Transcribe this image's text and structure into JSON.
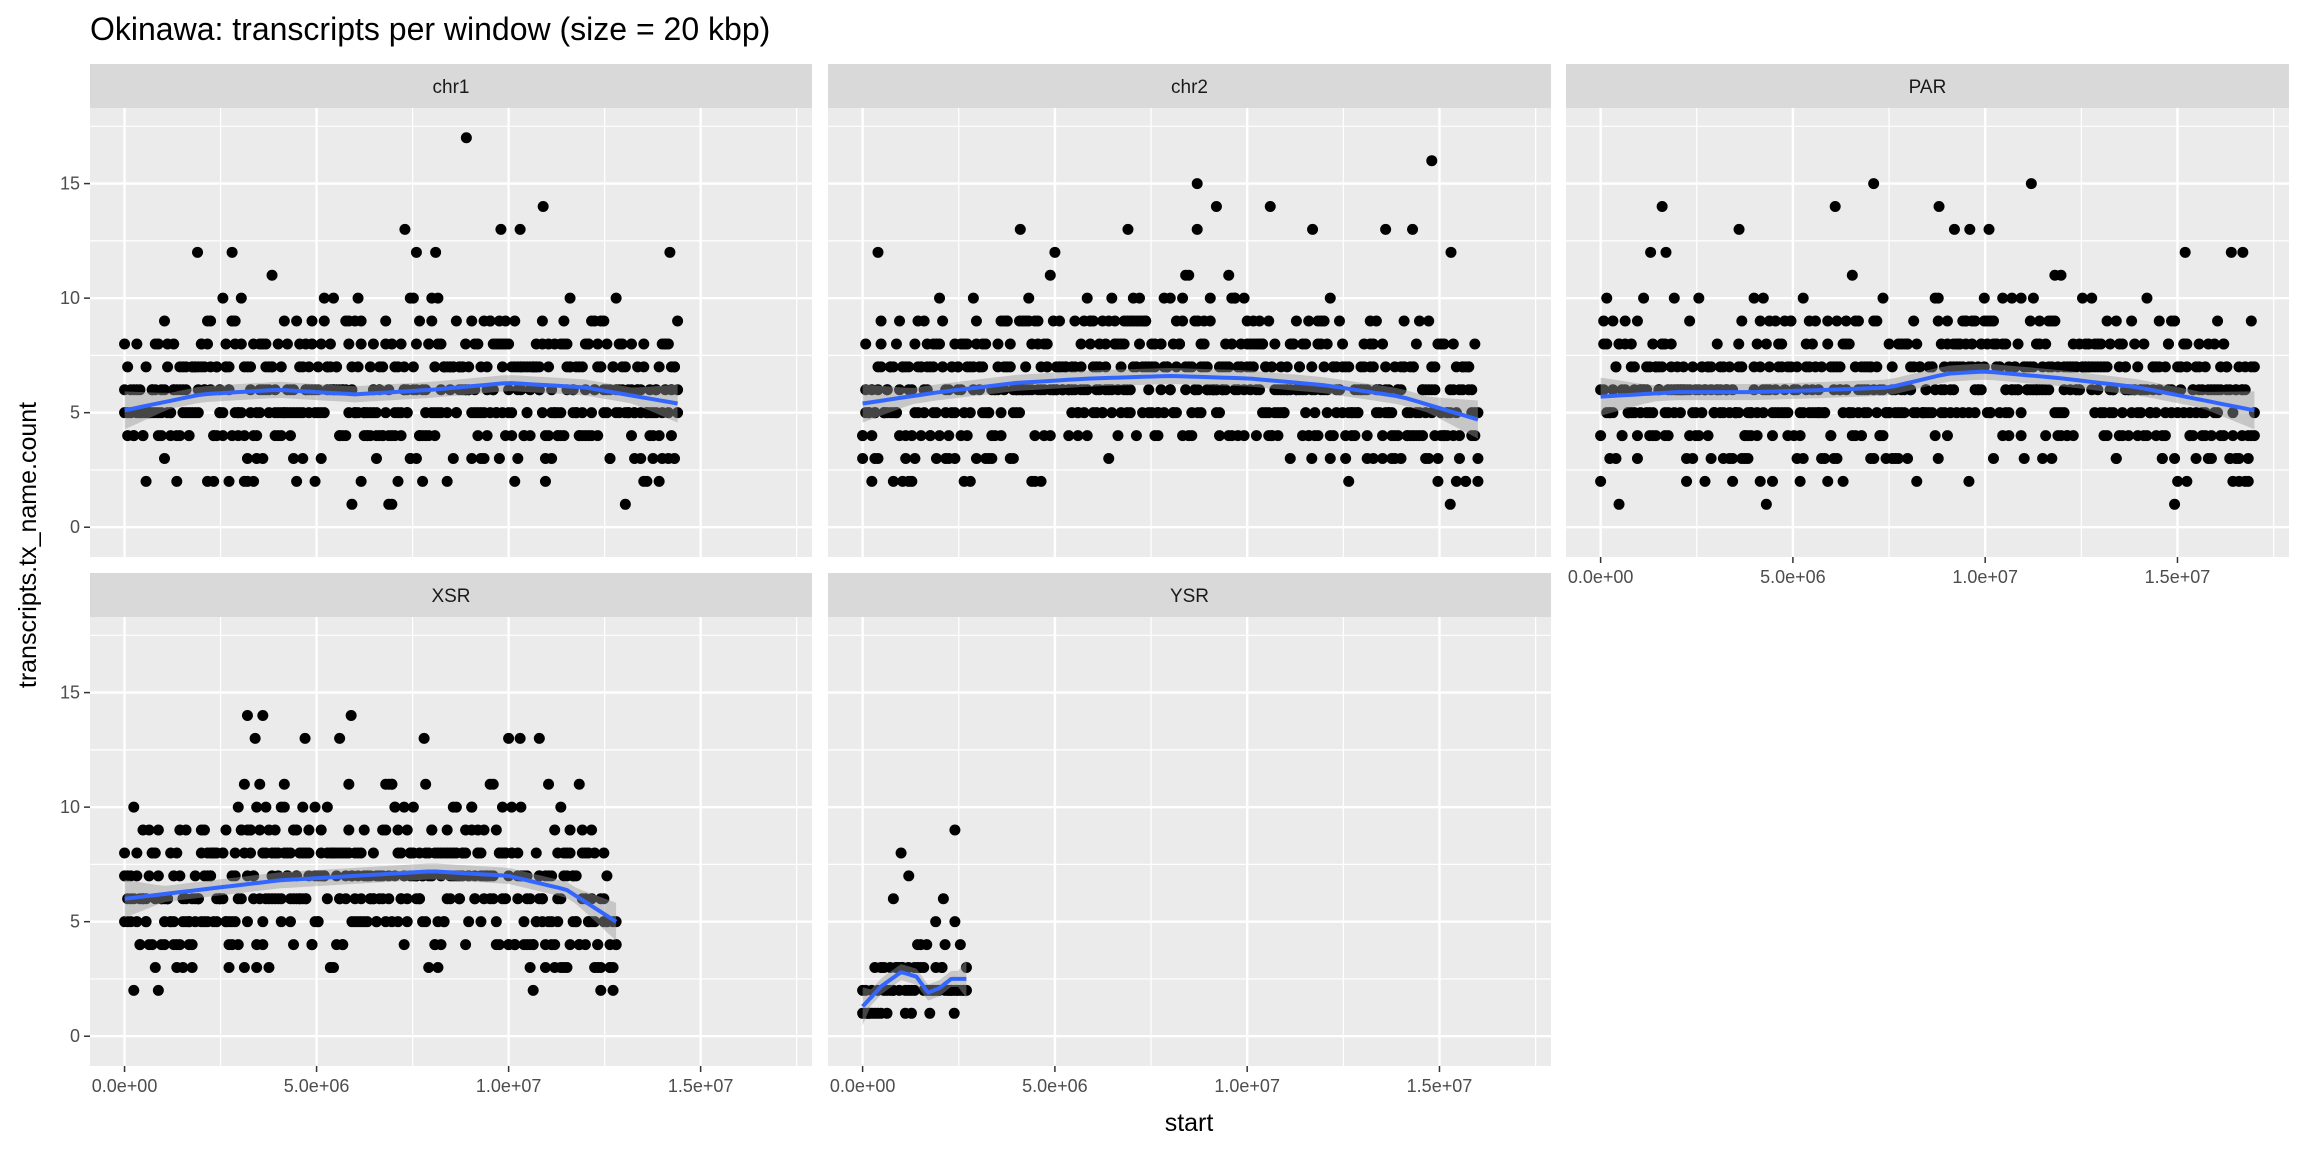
{
  "chart_data": {
    "type": "scatter",
    "title": "Okinawa: transcripts per window (size = 20 kbp)",
    "xlabel": "start",
    "ylabel": "transcripts.tx_name.count",
    "xlim": [
      -900000,
      17900000
    ],
    "ylim": [
      -1.3,
      18.3
    ],
    "x_ticks": [
      0,
      5000000,
      10000000,
      15000000
    ],
    "x_tick_labels": [
      "0.0e+00",
      "5.0e+06",
      "1.0e+07",
      "1.5e+07"
    ],
    "y_ticks": [
      0,
      5,
      10,
      15
    ],
    "y_tick_labels": [
      "0",
      "5",
      "10",
      "15"
    ],
    "grid": true,
    "smoother": "loess with gray confidence band",
    "colors": {
      "panel_bg": "#ebebeb",
      "grid": "#ffffff",
      "strip_bg": "#d9d9d9",
      "points": "#000000",
      "smooth_line": "#3366ff",
      "ribbon": "#999999"
    },
    "panels": [
      {
        "name": "chr1",
        "x_range": [
          0,
          14400000
        ],
        "y_level_range": [
          1,
          12
        ],
        "outliers": [
          {
            "x": 8900000,
            "y": 17
          },
          {
            "x": 10900000,
            "y": 14
          },
          {
            "x": 7300000,
            "y": 13
          },
          {
            "x": 9800000,
            "y": 13
          },
          {
            "x": 10300000,
            "y": 13
          },
          {
            "x": 1900000,
            "y": 12
          },
          {
            "x": 2800000,
            "y": 12
          },
          {
            "x": 7600000,
            "y": 12
          },
          {
            "x": 8100000,
            "y": 12
          },
          {
            "x": 14200000,
            "y": 12
          }
        ],
        "smooth": {
          "x": [
            0,
            2000000,
            4000000,
            6000000,
            8000000,
            10000000,
            12000000,
            14400000
          ],
          "y": [
            5.1,
            5.8,
            6.0,
            5.8,
            6.0,
            6.3,
            6.1,
            5.4
          ]
        }
      },
      {
        "name": "chr2",
        "x_range": [
          0,
          16000000
        ],
        "y_level_range": [
          1,
          12
        ],
        "outliers": [
          {
            "x": 14800000,
            "y": 16
          },
          {
            "x": 8700000,
            "y": 15
          },
          {
            "x": 9200000,
            "y": 14
          },
          {
            "x": 10600000,
            "y": 14
          },
          {
            "x": 4100000,
            "y": 13
          },
          {
            "x": 6900000,
            "y": 13
          },
          {
            "x": 8700000,
            "y": 13
          },
          {
            "x": 11700000,
            "y": 13
          },
          {
            "x": 13600000,
            "y": 13
          },
          {
            "x": 14300000,
            "y": 13
          },
          {
            "x": 400000,
            "y": 12
          },
          {
            "x": 5000000,
            "y": 12
          },
          {
            "x": 15300000,
            "y": 12
          }
        ],
        "smooth": {
          "x": [
            0,
            2000000,
            4000000,
            6000000,
            8000000,
            10000000,
            12000000,
            14000000,
            16000000
          ],
          "y": [
            5.4,
            5.9,
            6.3,
            6.5,
            6.6,
            6.5,
            6.2,
            5.7,
            4.7
          ]
        }
      },
      {
        "name": "PAR",
        "x_range": [
          0,
          17000000
        ],
        "y_level_range": [
          1,
          12
        ],
        "outliers": [
          {
            "x": 7100000,
            "y": 15
          },
          {
            "x": 11200000,
            "y": 15
          },
          {
            "x": 1600000,
            "y": 14
          },
          {
            "x": 6100000,
            "y": 14
          },
          {
            "x": 8800000,
            "y": 14
          },
          {
            "x": 3600000,
            "y": 13
          },
          {
            "x": 9200000,
            "y": 13
          },
          {
            "x": 9600000,
            "y": 13
          },
          {
            "x": 10100000,
            "y": 13
          },
          {
            "x": 1300000,
            "y": 12
          },
          {
            "x": 1700000,
            "y": 12
          },
          {
            "x": 15200000,
            "y": 12
          },
          {
            "x": 16400000,
            "y": 12
          },
          {
            "x": 16700000,
            "y": 12
          }
        ],
        "smooth": {
          "x": [
            0,
            2000000,
            4000000,
            6000000,
            7500000,
            9000000,
            10000000,
            12000000,
            14000000,
            17000000
          ],
          "y": [
            5.7,
            5.9,
            5.9,
            6.0,
            6.1,
            6.7,
            6.8,
            6.5,
            6.1,
            5.1
          ]
        }
      },
      {
        "name": "XSR",
        "x_range": [
          0,
          12800000
        ],
        "y_level_range": [
          1,
          12
        ],
        "outliers": [
          {
            "x": 3200000,
            "y": 14
          },
          {
            "x": 3600000,
            "y": 14
          },
          {
            "x": 5900000,
            "y": 14
          },
          {
            "x": 3400000,
            "y": 13
          },
          {
            "x": 4700000,
            "y": 13
          },
          {
            "x": 5600000,
            "y": 13
          },
          {
            "x": 7800000,
            "y": 13
          },
          {
            "x": 10000000,
            "y": 13
          },
          {
            "x": 10300000,
            "y": 13
          },
          {
            "x": 10800000,
            "y": 13
          }
        ],
        "smooth": {
          "x": [
            0,
            2000000,
            4000000,
            6000000,
            8000000,
            10000000,
            11500000,
            12800000
          ],
          "y": [
            6.0,
            6.4,
            6.8,
            7.0,
            7.2,
            7.0,
            6.4,
            5.0
          ]
        }
      },
      {
        "name": "YSR",
        "x_range": [
          0,
          2700000
        ],
        "y_level_range": [
          1,
          4
        ],
        "outliers": [
          {
            "x": 2400000,
            "y": 9
          },
          {
            "x": 1000000,
            "y": 8
          },
          {
            "x": 1200000,
            "y": 7
          },
          {
            "x": 800000,
            "y": 6
          },
          {
            "x": 2100000,
            "y": 6
          },
          {
            "x": 1900000,
            "y": 5
          },
          {
            "x": 2400000,
            "y": 5
          }
        ],
        "smooth": {
          "x": [
            0,
            500000,
            1000000,
            1400000,
            1700000,
            2000000,
            2300000,
            2700000
          ],
          "y": [
            1.3,
            2.2,
            2.8,
            2.6,
            1.9,
            2.1,
            2.5,
            2.5
          ]
        }
      }
    ]
  }
}
